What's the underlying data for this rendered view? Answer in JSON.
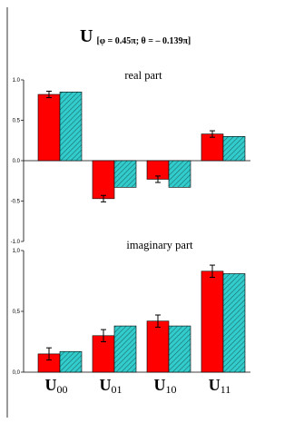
{
  "title": {
    "main": "U",
    "subscript": "[φ = 0.45π; θ = – 0.139π]"
  },
  "colors": {
    "measured": "#ff0000",
    "theory": "#33cccc",
    "hatch": "#1a6a6a",
    "axis": "#000000"
  },
  "categories": [
    {
      "main": "U",
      "sub": "00"
    },
    {
      "main": "U",
      "sub": "01"
    },
    {
      "main": "U",
      "sub": "10"
    },
    {
      "main": "U",
      "sub": "11"
    }
  ],
  "chart_data": [
    {
      "type": "bar",
      "title": "real part",
      "categories": [
        "U00",
        "U01",
        "U10",
        "U11"
      ],
      "ylim": [
        -1.0,
        1.0
      ],
      "yticks": [
        1.0,
        0.5,
        0.0,
        -0.5,
        -1.0
      ],
      "ytick_labels": [
        "1.0",
        "0.5",
        "0.0",
        "-0.5",
        "-1.0"
      ],
      "series": [
        {
          "style": "solid-red",
          "values": [
            0.82,
            -0.47,
            -0.23,
            0.33
          ],
          "errors": [
            0.04,
            0.04,
            0.04,
            0.04
          ]
        },
        {
          "style": "hatched-cyan",
          "values": [
            0.85,
            -0.33,
            -0.33,
            0.3
          ]
        }
      ]
    },
    {
      "type": "bar",
      "title": "imaginary part",
      "categories": [
        "U00",
        "U01",
        "U10",
        "U11"
      ],
      "ylim": [
        0.0,
        1.0
      ],
      "yticks": [
        1.0,
        0.5,
        0.0
      ],
      "ytick_labels": [
        "1,0",
        "0,5",
        "0,0"
      ],
      "series": [
        {
          "style": "solid-red",
          "values": [
            0.15,
            0.3,
            0.42,
            0.83
          ],
          "errors": [
            0.05,
            0.05,
            0.05,
            0.05
          ]
        },
        {
          "style": "hatched-cyan",
          "values": [
            0.17,
            0.38,
            0.38,
            0.81
          ]
        }
      ]
    }
  ]
}
